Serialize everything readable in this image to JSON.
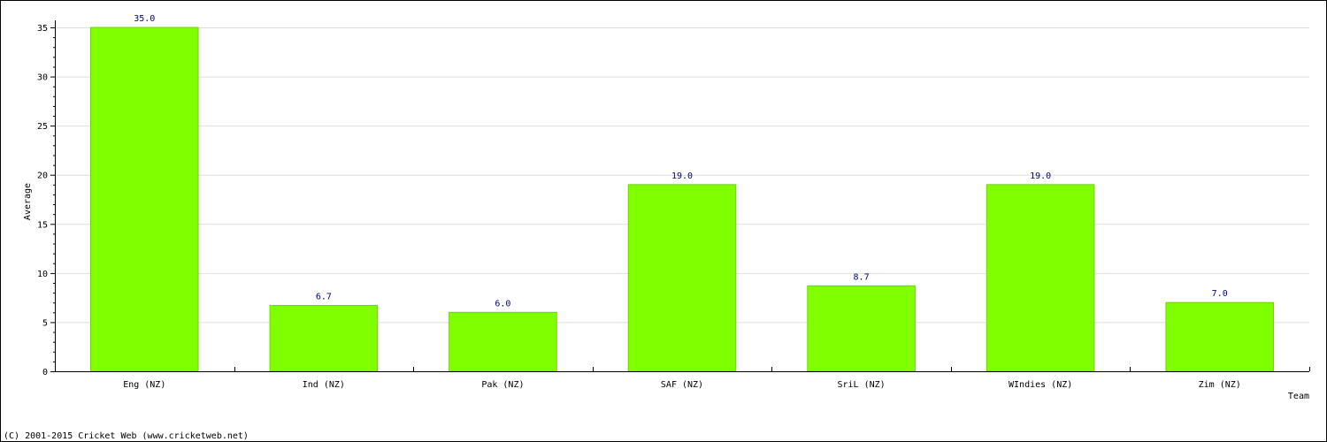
{
  "chart_data": {
    "type": "bar",
    "title": "",
    "xlabel": "Team",
    "ylabel": "Average",
    "categories": [
      "Eng (NZ)",
      "Ind (NZ)",
      "Pak (NZ)",
      "SAF (NZ)",
      "SriL (NZ)",
      "WIndies (NZ)",
      "Zim (NZ)"
    ],
    "values": [
      35.0,
      6.7,
      6.0,
      19.0,
      8.7,
      19.0,
      7.0
    ],
    "value_labels": [
      "35.0",
      "6.7",
      "6.0",
      "19.0",
      "8.7",
      "19.0",
      "7.0"
    ],
    "ylim": [
      0,
      35
    ],
    "yticks": [
      0,
      5,
      10,
      15,
      20,
      25,
      30,
      35
    ],
    "grid": true,
    "bar_color": "#80ff00",
    "value_label_color": "#000080"
  },
  "footer": {
    "copyright": "(C) 2001-2015 Cricket Web (www.cricketweb.net)"
  }
}
